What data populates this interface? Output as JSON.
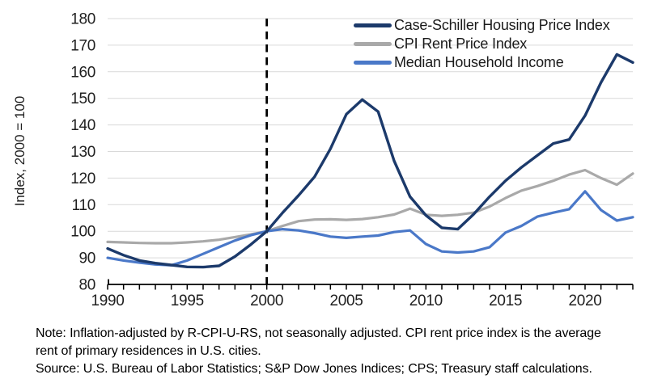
{
  "y_axis_title": "Index, 2000 = 100",
  "notes": {
    "note_line_1": "Note: Inflation-adjusted by R-CPI-U-RS, not seasonally adjusted. CPI rent price index is the average",
    "note_line_2": "rent of primary residences in U.S. cities.",
    "source_line": "Source: U.S. Bureau of Labor Statistics; S&P Dow Jones Indices; CPS; Treasury staff calculations."
  },
  "chart_data": {
    "type": "line",
    "title": "",
    "xlabel": "",
    "ylabel": "Index, 2000 = 100",
    "xlim": [
      1990,
      2023
    ],
    "ylim": [
      80,
      180
    ],
    "grid": "horizontal",
    "legend_position": "top-right",
    "x_tick_labels": [
      1990,
      1995,
      2000,
      2005,
      2010,
      2015,
      2020
    ],
    "y_tick_labels": [
      80,
      90,
      100,
      110,
      120,
      130,
      140,
      150,
      160,
      170,
      180
    ],
    "y_gridlines": [
      90,
      100,
      110,
      120,
      130,
      140,
      150,
      160,
      170,
      180
    ],
    "x_minor_tick_step": 1,
    "reference_line_x": 2000,
    "colors": {
      "gridline": "#d9d9d9",
      "axis": "#000000",
      "text": "#1f1f1f",
      "reference_line": "#000000"
    },
    "x": [
      1990,
      1991,
      1992,
      1993,
      1994,
      1995,
      1996,
      1997,
      1998,
      1999,
      2000,
      2001,
      2002,
      2003,
      2004,
      2005,
      2006,
      2007,
      2008,
      2009,
      2010,
      2011,
      2012,
      2013,
      2014,
      2015,
      2016,
      2017,
      2018,
      2019,
      2020,
      2021,
      2022,
      2023
    ],
    "series": [
      {
        "name": "Case-Schiller Housing Price Index",
        "color": "#1c3a6b",
        "width": 3.4,
        "values": [
          93.5,
          91,
          89,
          88,
          87.3,
          86.6,
          86.5,
          87,
          90.5,
          95,
          100,
          107,
          113.5,
          120.5,
          131,
          144,
          149.5,
          145,
          126.5,
          113,
          106,
          101.3,
          100.8,
          106.4,
          113,
          119,
          124,
          128.5,
          133,
          134.5,
          143.5,
          156,
          166.5,
          163.5
        ]
      },
      {
        "name": "CPI Rent Price Index",
        "color": "#a9a9a9",
        "width": 3.2,
        "values": [
          96,
          95.8,
          95.6,
          95.5,
          95.5,
          95.8,
          96.2,
          96.8,
          97.8,
          98.8,
          100,
          102,
          103.8,
          104.4,
          104.5,
          104.3,
          104.6,
          105.3,
          106.3,
          108.5,
          106.2,
          105.8,
          106.2,
          107,
          109.3,
          112.5,
          115.3,
          117,
          119,
          121.3,
          123,
          120,
          117.5,
          121.7
        ]
      },
      {
        "name": "Median Household Income",
        "color": "#4a78c8",
        "width": 3.2,
        "values": [
          90,
          89,
          88.2,
          87.5,
          87.2,
          89,
          91.5,
          94,
          96.5,
          98.5,
          100,
          100.8,
          100.3,
          99.3,
          98,
          97.5,
          98,
          98.4,
          99.7,
          100.3,
          95.2,
          92.4,
          92,
          92.4,
          94,
          99.5,
          102,
          105.5,
          107,
          108.3,
          115,
          108,
          104,
          105.3
        ]
      }
    ]
  }
}
